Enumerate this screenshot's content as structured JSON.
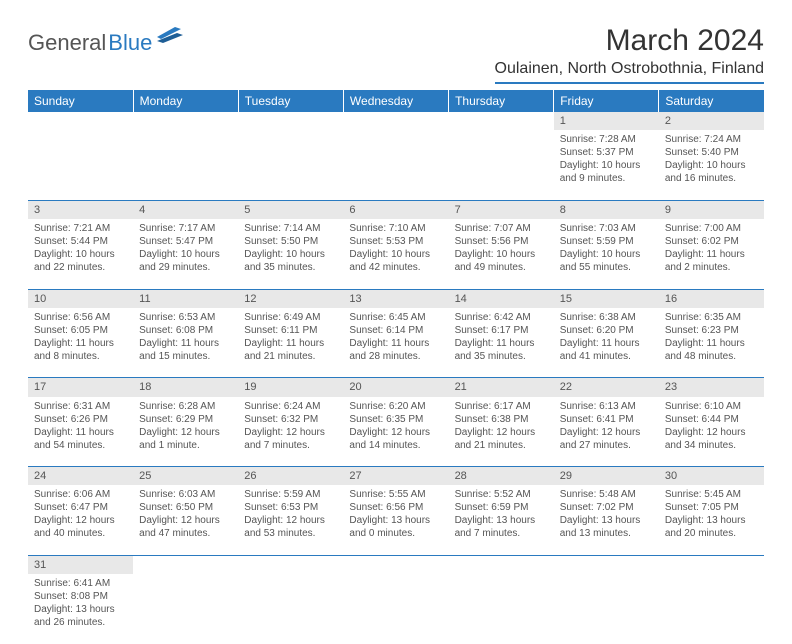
{
  "logo": {
    "part1": "General",
    "part2": "Blue"
  },
  "title": "March 2024",
  "location": "Oulainen, North Ostrobothnia, Finland",
  "header_bg": "#2a7ac0",
  "header_fg": "#ffffff",
  "daynum_bg": "#e8e8e8",
  "text_color": "#555555",
  "border_color": "#2a7ac0",
  "columns": [
    "Sunday",
    "Monday",
    "Tuesday",
    "Wednesday",
    "Thursday",
    "Friday",
    "Saturday"
  ],
  "weeks": [
    [
      null,
      null,
      null,
      null,
      null,
      {
        "n": "1",
        "sr": "Sunrise: 7:28 AM",
        "ss": "Sunset: 5:37 PM",
        "d1": "Daylight: 10 hours",
        "d2": "and 9 minutes."
      },
      {
        "n": "2",
        "sr": "Sunrise: 7:24 AM",
        "ss": "Sunset: 5:40 PM",
        "d1": "Daylight: 10 hours",
        "d2": "and 16 minutes."
      }
    ],
    [
      {
        "n": "3",
        "sr": "Sunrise: 7:21 AM",
        "ss": "Sunset: 5:44 PM",
        "d1": "Daylight: 10 hours",
        "d2": "and 22 minutes."
      },
      {
        "n": "4",
        "sr": "Sunrise: 7:17 AM",
        "ss": "Sunset: 5:47 PM",
        "d1": "Daylight: 10 hours",
        "d2": "and 29 minutes."
      },
      {
        "n": "5",
        "sr": "Sunrise: 7:14 AM",
        "ss": "Sunset: 5:50 PM",
        "d1": "Daylight: 10 hours",
        "d2": "and 35 minutes."
      },
      {
        "n": "6",
        "sr": "Sunrise: 7:10 AM",
        "ss": "Sunset: 5:53 PM",
        "d1": "Daylight: 10 hours",
        "d2": "and 42 minutes."
      },
      {
        "n": "7",
        "sr": "Sunrise: 7:07 AM",
        "ss": "Sunset: 5:56 PM",
        "d1": "Daylight: 10 hours",
        "d2": "and 49 minutes."
      },
      {
        "n": "8",
        "sr": "Sunrise: 7:03 AM",
        "ss": "Sunset: 5:59 PM",
        "d1": "Daylight: 10 hours",
        "d2": "and 55 minutes."
      },
      {
        "n": "9",
        "sr": "Sunrise: 7:00 AM",
        "ss": "Sunset: 6:02 PM",
        "d1": "Daylight: 11 hours",
        "d2": "and 2 minutes."
      }
    ],
    [
      {
        "n": "10",
        "sr": "Sunrise: 6:56 AM",
        "ss": "Sunset: 6:05 PM",
        "d1": "Daylight: 11 hours",
        "d2": "and 8 minutes."
      },
      {
        "n": "11",
        "sr": "Sunrise: 6:53 AM",
        "ss": "Sunset: 6:08 PM",
        "d1": "Daylight: 11 hours",
        "d2": "and 15 minutes."
      },
      {
        "n": "12",
        "sr": "Sunrise: 6:49 AM",
        "ss": "Sunset: 6:11 PM",
        "d1": "Daylight: 11 hours",
        "d2": "and 21 minutes."
      },
      {
        "n": "13",
        "sr": "Sunrise: 6:45 AM",
        "ss": "Sunset: 6:14 PM",
        "d1": "Daylight: 11 hours",
        "d2": "and 28 minutes."
      },
      {
        "n": "14",
        "sr": "Sunrise: 6:42 AM",
        "ss": "Sunset: 6:17 PM",
        "d1": "Daylight: 11 hours",
        "d2": "and 35 minutes."
      },
      {
        "n": "15",
        "sr": "Sunrise: 6:38 AM",
        "ss": "Sunset: 6:20 PM",
        "d1": "Daylight: 11 hours",
        "d2": "and 41 minutes."
      },
      {
        "n": "16",
        "sr": "Sunrise: 6:35 AM",
        "ss": "Sunset: 6:23 PM",
        "d1": "Daylight: 11 hours",
        "d2": "and 48 minutes."
      }
    ],
    [
      {
        "n": "17",
        "sr": "Sunrise: 6:31 AM",
        "ss": "Sunset: 6:26 PM",
        "d1": "Daylight: 11 hours",
        "d2": "and 54 minutes."
      },
      {
        "n": "18",
        "sr": "Sunrise: 6:28 AM",
        "ss": "Sunset: 6:29 PM",
        "d1": "Daylight: 12 hours",
        "d2": "and 1 minute."
      },
      {
        "n": "19",
        "sr": "Sunrise: 6:24 AM",
        "ss": "Sunset: 6:32 PM",
        "d1": "Daylight: 12 hours",
        "d2": "and 7 minutes."
      },
      {
        "n": "20",
        "sr": "Sunrise: 6:20 AM",
        "ss": "Sunset: 6:35 PM",
        "d1": "Daylight: 12 hours",
        "d2": "and 14 minutes."
      },
      {
        "n": "21",
        "sr": "Sunrise: 6:17 AM",
        "ss": "Sunset: 6:38 PM",
        "d1": "Daylight: 12 hours",
        "d2": "and 21 minutes."
      },
      {
        "n": "22",
        "sr": "Sunrise: 6:13 AM",
        "ss": "Sunset: 6:41 PM",
        "d1": "Daylight: 12 hours",
        "d2": "and 27 minutes."
      },
      {
        "n": "23",
        "sr": "Sunrise: 6:10 AM",
        "ss": "Sunset: 6:44 PM",
        "d1": "Daylight: 12 hours",
        "d2": "and 34 minutes."
      }
    ],
    [
      {
        "n": "24",
        "sr": "Sunrise: 6:06 AM",
        "ss": "Sunset: 6:47 PM",
        "d1": "Daylight: 12 hours",
        "d2": "and 40 minutes."
      },
      {
        "n": "25",
        "sr": "Sunrise: 6:03 AM",
        "ss": "Sunset: 6:50 PM",
        "d1": "Daylight: 12 hours",
        "d2": "and 47 minutes."
      },
      {
        "n": "26",
        "sr": "Sunrise: 5:59 AM",
        "ss": "Sunset: 6:53 PM",
        "d1": "Daylight: 12 hours",
        "d2": "and 53 minutes."
      },
      {
        "n": "27",
        "sr": "Sunrise: 5:55 AM",
        "ss": "Sunset: 6:56 PM",
        "d1": "Daylight: 13 hours",
        "d2": "and 0 minutes."
      },
      {
        "n": "28",
        "sr": "Sunrise: 5:52 AM",
        "ss": "Sunset: 6:59 PM",
        "d1": "Daylight: 13 hours",
        "d2": "and 7 minutes."
      },
      {
        "n": "29",
        "sr": "Sunrise: 5:48 AM",
        "ss": "Sunset: 7:02 PM",
        "d1": "Daylight: 13 hours",
        "d2": "and 13 minutes."
      },
      {
        "n": "30",
        "sr": "Sunrise: 5:45 AM",
        "ss": "Sunset: 7:05 PM",
        "d1": "Daylight: 13 hours",
        "d2": "and 20 minutes."
      }
    ],
    [
      {
        "n": "31",
        "sr": "Sunrise: 6:41 AM",
        "ss": "Sunset: 8:08 PM",
        "d1": "Daylight: 13 hours",
        "d2": "and 26 minutes."
      },
      null,
      null,
      null,
      null,
      null,
      null
    ]
  ]
}
